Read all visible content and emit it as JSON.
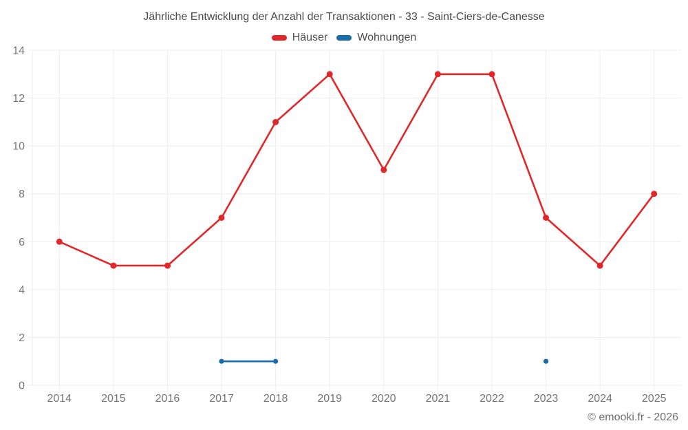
{
  "chart_data": {
    "type": "line",
    "title": "Jährliche Entwicklung der Anzahl der Transaktionen - 33 - Saint-Ciers-de-Canesse",
    "attribution": "© emooki.fr - 2026",
    "categories": [
      "2014",
      "2015",
      "2016",
      "2017",
      "2018",
      "2019",
      "2020",
      "2021",
      "2022",
      "2023",
      "2024",
      "2025"
    ],
    "series": [
      {
        "name": "Häuser",
        "color": "#e0282b",
        "point_radius": 4.5,
        "values": [
          6,
          5,
          5,
          7,
          11,
          13,
          9,
          13,
          13,
          7,
          5,
          8
        ]
      },
      {
        "name": "Wohnungen",
        "color": "#176ca9",
        "point_radius": 3.6,
        "values": [
          null,
          null,
          null,
          1,
          1,
          null,
          null,
          null,
          null,
          1,
          null,
          null
        ]
      }
    ],
    "xlabel": "",
    "ylabel": "",
    "ylim": [
      0,
      14
    ],
    "yticks": [
      0,
      2,
      4,
      6,
      8,
      10,
      12,
      14
    ],
    "grid": true,
    "legend_position": "top",
    "colors": {
      "grid": "#ededed",
      "axis_label": "#747474",
      "title_text": "#4a4a4a",
      "legend_text": "#4e4e4e",
      "attribution_text": "#6d6d6d",
      "background": "#ffffff"
    }
  }
}
